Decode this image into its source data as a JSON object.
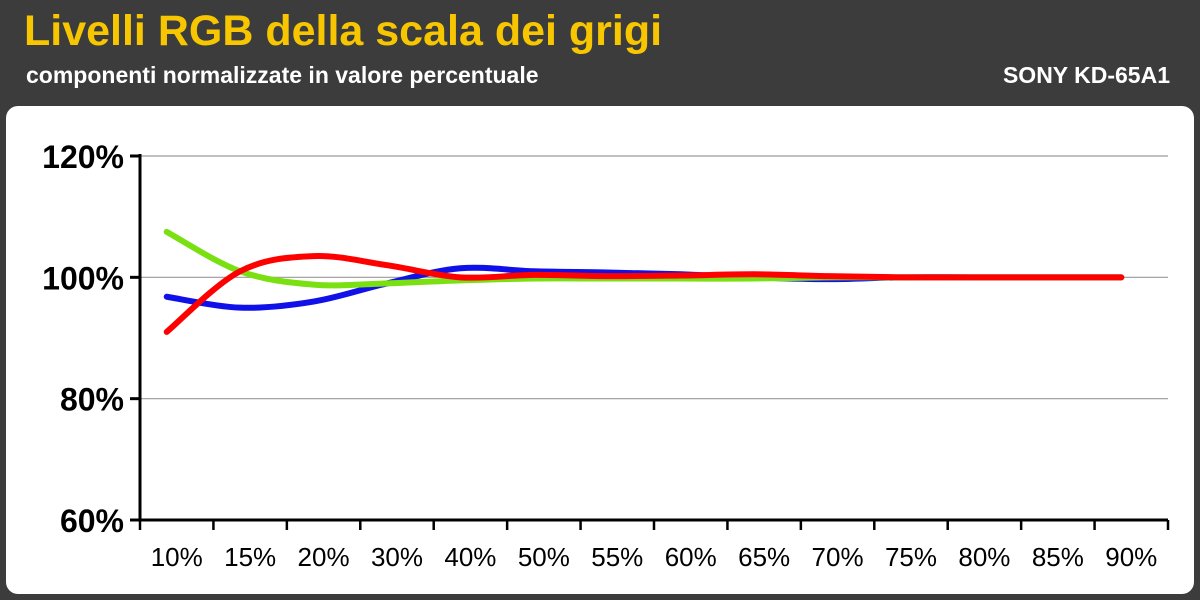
{
  "header": {
    "title": "Livelli RGB della scala dei grigi",
    "subtitle": "componenti normalizzate in valore percentuale",
    "model": "SONY KD-65A1"
  },
  "chart_data": {
    "type": "line",
    "x": [
      "10%",
      "15%",
      "20%",
      "30%",
      "40%",
      "50%",
      "55%",
      "60%",
      "65%",
      "70%",
      "75%",
      "80%",
      "85%",
      "90%"
    ],
    "ylim": [
      60,
      120
    ],
    "yticks": [
      "60%",
      "80%",
      "100%",
      "120%"
    ],
    "grid": true,
    "series": [
      {
        "color": "#1010e8",
        "values": [
          96.8,
          95.0,
          96.0,
          99.0,
          101.5,
          101.0,
          100.8,
          100.5,
          100.0,
          99.7,
          100.0,
          100.0,
          100.0,
          100.0
        ]
      },
      {
        "color": "#7ae012",
        "values": [
          107.5,
          101.0,
          98.8,
          99.0,
          99.5,
          99.8,
          99.8,
          99.8,
          99.8,
          100.0,
          100.0,
          100.0,
          100.0,
          100.0
        ]
      },
      {
        "color": "#ff0000",
        "values": [
          91.0,
          101.0,
          103.5,
          102.0,
          100.0,
          100.4,
          100.2,
          100.3,
          100.5,
          100.2,
          100.0,
          100.0,
          100.0,
          100.0
        ]
      }
    ]
  }
}
